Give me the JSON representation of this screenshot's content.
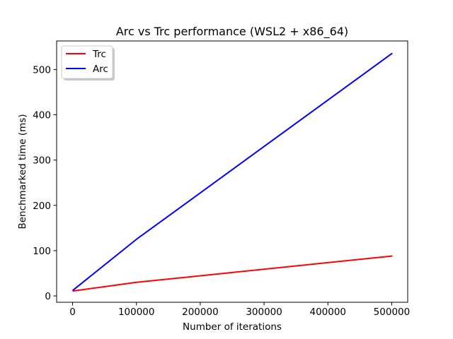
{
  "chart_data": {
    "type": "line",
    "title": "Arc vs Trc performance (WSL2 + x86_64)",
    "xlabel": "Number of iterations",
    "ylabel": "Benchmarked time (ms)",
    "xlim": [
      -25000,
      525000
    ],
    "ylim": [
      -14,
      563
    ],
    "xticks": [
      0,
      100000,
      200000,
      300000,
      400000,
      500000
    ],
    "xtick_labels": [
      "0",
      "100000",
      "200000",
      "300000",
      "400000",
      "500000"
    ],
    "yticks": [
      0,
      100,
      200,
      300,
      400,
      500
    ],
    "ytick_labels": [
      "0",
      "100",
      "200",
      "300",
      "400",
      "500"
    ],
    "grid": false,
    "legend_position": "top-left",
    "series": [
      {
        "name": "Trc",
        "color": "#ff0000",
        "x": [
          1000,
          100000,
          500000
        ],
        "y": [
          11,
          30,
          88
        ]
      },
      {
        "name": "Arc",
        "color": "#0000ff",
        "x": [
          1000,
          100000,
          500000
        ],
        "y": [
          13,
          125,
          535
        ]
      }
    ]
  }
}
